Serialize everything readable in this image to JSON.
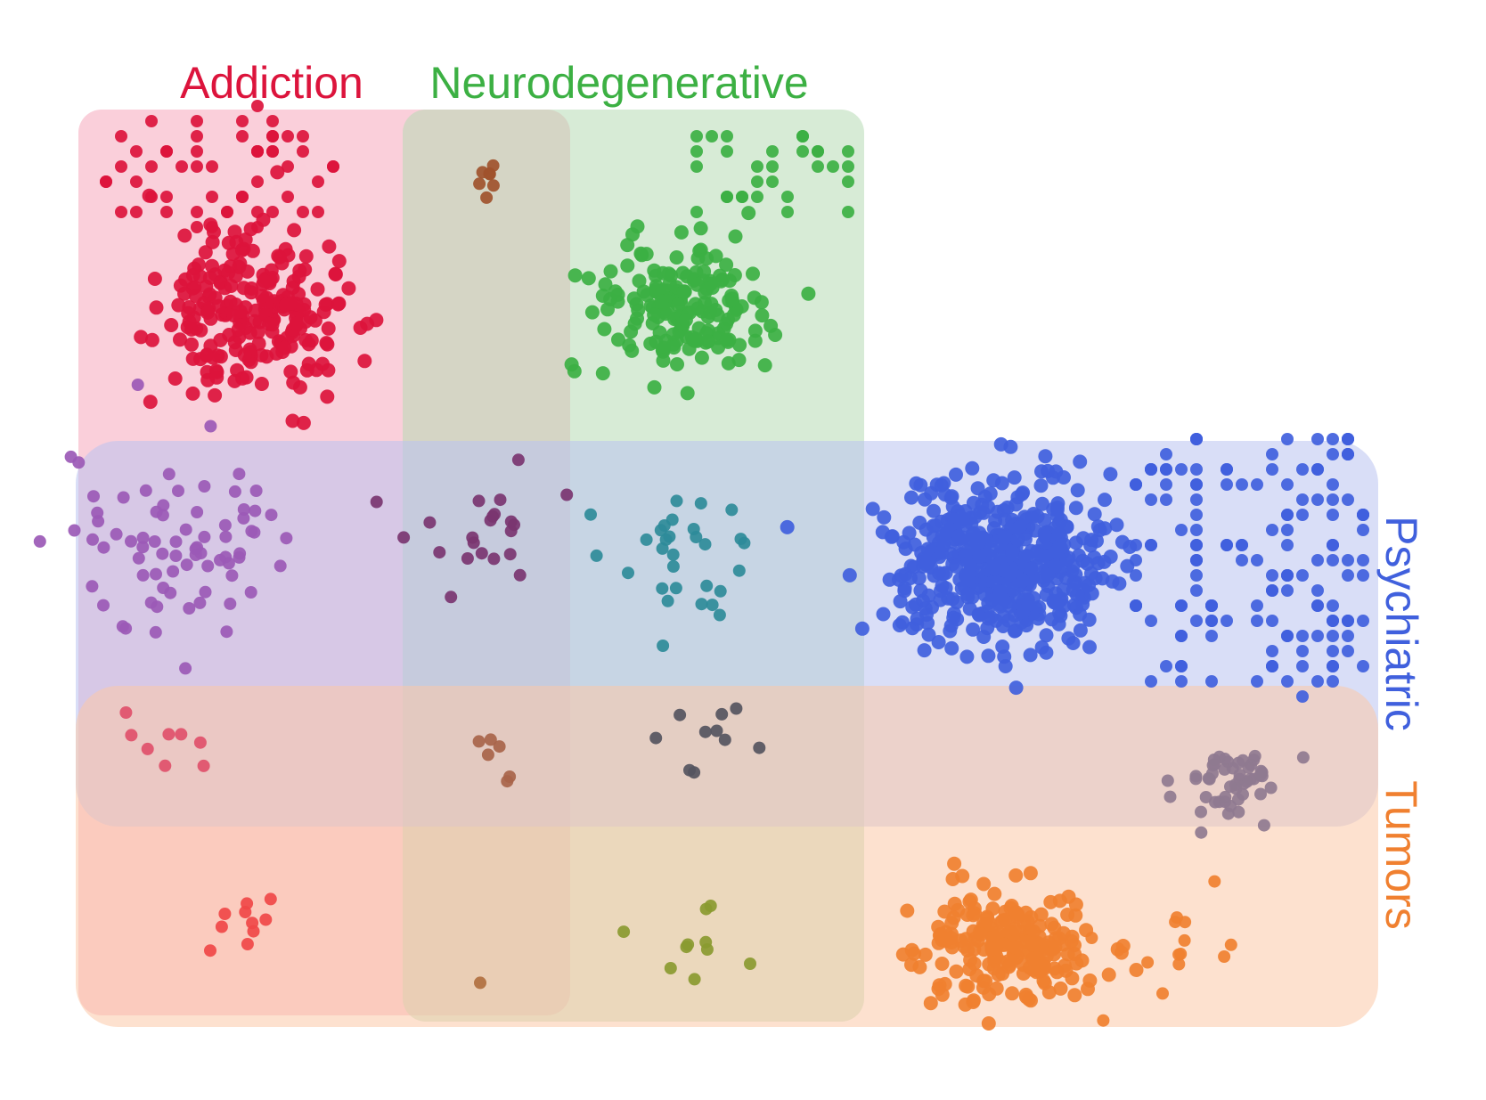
{
  "labels": {
    "addiction": "Addiction",
    "neurodegenerative": "Neurodegenerative",
    "psychiatric": "Psychiatric",
    "tumors": "Tumors"
  },
  "colors": {
    "addiction": "#dc143c",
    "neurodegenerative": "#3cb043",
    "psychiatric": "#4060dd",
    "tumors": "#f08030",
    "addiction_region": "#f7b6c6",
    "neurodegenerative_region": "#c8e6c8",
    "psychiatric_region": "#c8cff2",
    "tumors_region": "#fdd5b8",
    "addiction_neuro_cluster": "#a0522d",
    "addiction_psychiatric_cluster": "#9b59b6",
    "addiction_neuro_psychiatric_cluster": "#7a3570",
    "neuro_psychiatric_cluster": "#2e8b99",
    "addiction_psychiatric_tumors_cluster": "#e0506a",
    "addiction_neuro_psychiatric_tumors_cluster": "#a8644a",
    "neuro_psychiatric_tumors_cluster": "#555560",
    "psychiatric_tumors_cluster": "#8f7a90",
    "addiction_tumors_cluster": "#f04848",
    "addiction_neuro_tumors_cluster": "#b07040",
    "neuro_tumors_cluster": "#8a9a30"
  },
  "clusters": [
    {
      "id": "addiction-only",
      "categories": [
        "Addiction"
      ],
      "color_key": "addiction"
    },
    {
      "id": "neurodegenerative-only",
      "categories": [
        "Neurodegenerative"
      ],
      "color_key": "neurodegenerative"
    },
    {
      "id": "psychiatric-only",
      "categories": [
        "Psychiatric"
      ],
      "color_key": "psychiatric"
    },
    {
      "id": "tumors-only",
      "categories": [
        "Tumors"
      ],
      "color_key": "tumors"
    },
    {
      "id": "addiction-neuro",
      "categories": [
        "Addiction",
        "Neurodegenerative"
      ],
      "color_key": "addiction_neuro_cluster"
    },
    {
      "id": "addiction-psychiatric",
      "categories": [
        "Addiction",
        "Psychiatric"
      ],
      "color_key": "addiction_psychiatric_cluster"
    },
    {
      "id": "addiction-neuro-psychiatric",
      "categories": [
        "Addiction",
        "Neurodegenerative",
        "Psychiatric"
      ],
      "color_key": "addiction_neuro_psychiatric_cluster"
    },
    {
      "id": "neuro-psychiatric",
      "categories": [
        "Neurodegenerative",
        "Psychiatric"
      ],
      "color_key": "neuro_psychiatric_cluster"
    },
    {
      "id": "addiction-psychiatric-tumors",
      "categories": [
        "Addiction",
        "Psychiatric",
        "Tumors"
      ],
      "color_key": "addiction_psychiatric_tumors_cluster"
    },
    {
      "id": "addiction-neuro-psychiatric-tumors",
      "categories": [
        "Addiction",
        "Neurodegenerative",
        "Psychiatric",
        "Tumors"
      ],
      "color_key": "addiction_neuro_psychiatric_tumors_cluster"
    },
    {
      "id": "neuro-psychiatric-tumors",
      "categories": [
        "Neurodegenerative",
        "Psychiatric",
        "Tumors"
      ],
      "color_key": "neuro_psychiatric_tumors_cluster"
    },
    {
      "id": "psychiatric-tumors",
      "categories": [
        "Psychiatric",
        "Tumors"
      ],
      "color_key": "psychiatric_tumors_cluster"
    },
    {
      "id": "addiction-tumors",
      "categories": [
        "Addiction",
        "Tumors"
      ],
      "color_key": "addiction_tumors_cluster"
    },
    {
      "id": "addiction-neuro-tumors",
      "categories": [
        "Addiction",
        "Neurodegenerative",
        "Tumors"
      ],
      "color_key": "addiction_neuro_tumors_cluster"
    },
    {
      "id": "neuro-tumors",
      "categories": [
        "Neurodegenerative",
        "Tumors"
      ],
      "color_key": "neuro_tumors_cluster"
    }
  ]
}
